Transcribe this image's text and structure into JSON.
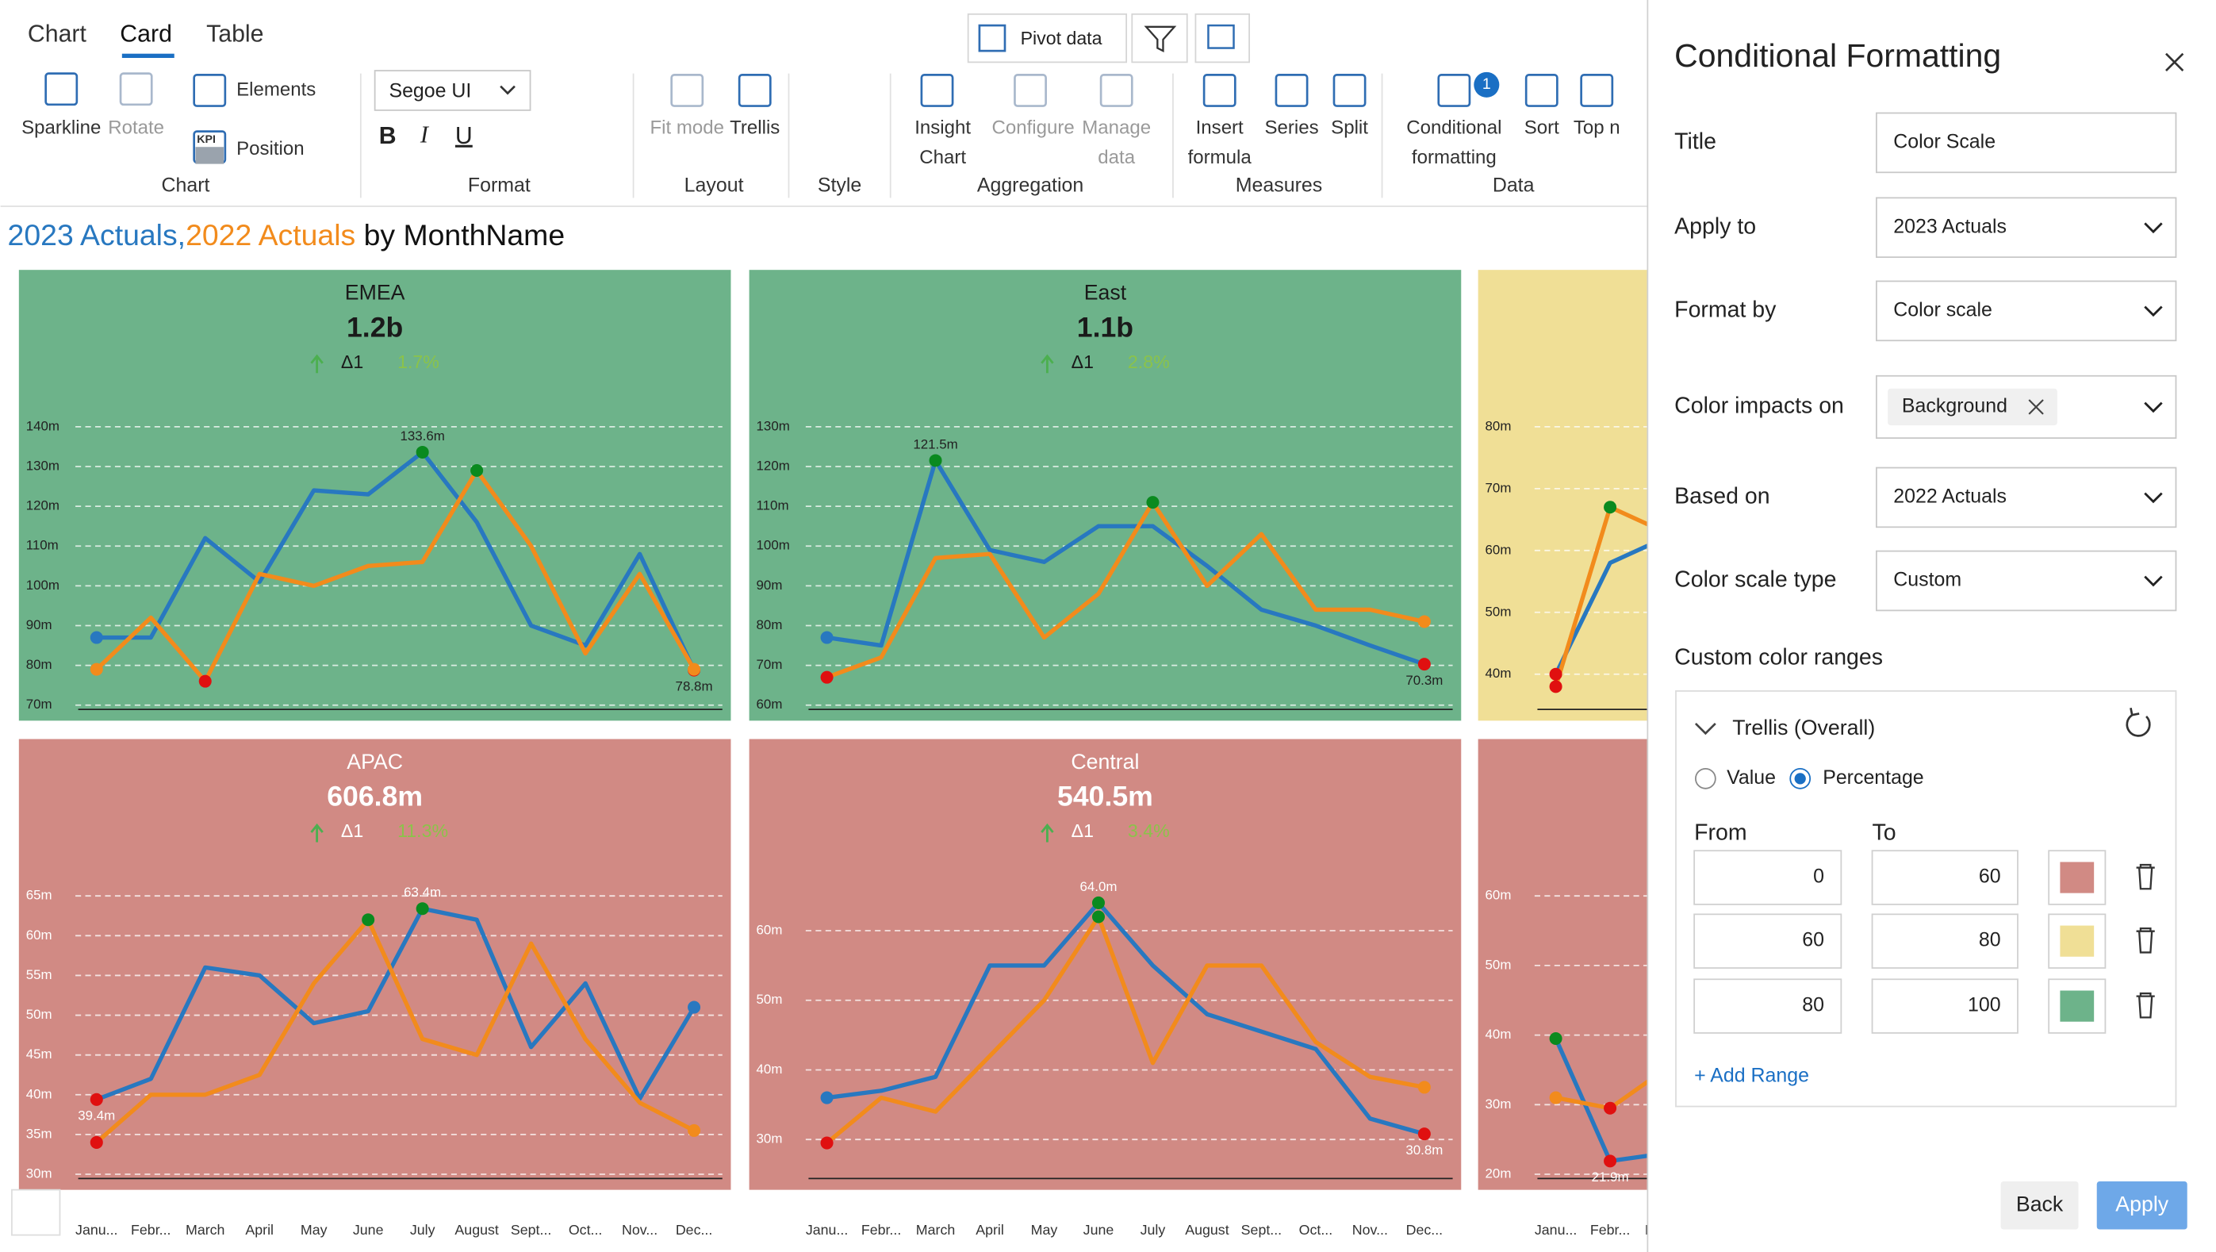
{
  "ribbon": {
    "tabs": [
      "Chart",
      "Card",
      "Table"
    ],
    "pivot": "Pivot data",
    "buttons": [
      [
        "Sparkline"
      ],
      [
        "Rotate"
      ],
      [
        "Elements"
      ],
      [
        "Position"
      ],
      [
        "Fit mode"
      ],
      [
        "Trellis"
      ],
      [
        "Insight",
        "Chart"
      ],
      [
        "Configure"
      ],
      [
        "Manage",
        "data"
      ],
      [
        "Insert",
        "formula"
      ],
      [
        "Series"
      ],
      [
        "Split"
      ],
      [
        "Conditional",
        "formatting"
      ],
      [
        "Sort"
      ],
      [
        "Top n"
      ]
    ],
    "kpi": "KPI",
    "font": "Segoe UI",
    "text_styles": [
      "B",
      "I",
      "U"
    ],
    "badge": "1",
    "groups": [
      "Chart",
      "Format",
      "Layout",
      "Style",
      "Aggregation",
      "Measures",
      "Data"
    ]
  },
  "title": {
    "parts": [
      "2023 Actuals",
      ",",
      "2022 Actuals",
      " by MonthName"
    ],
    "colors": [
      "#2878c0",
      "#2878c0",
      "#f28b1c",
      "#111111"
    ]
  },
  "months": [
    "Janu...",
    "Febr...",
    "March",
    "April",
    "May",
    "June",
    "July",
    "August",
    "Sept...",
    "Oct...",
    "Nov...",
    "Dec..."
  ],
  "cards": [
    {
      "name": "EMEA",
      "value": "1.2b",
      "delta_label": "Δ1",
      "delta": "1.7%",
      "background": "#6db38a",
      "chart": {
        "type": "line",
        "ylim": [
          70,
          140
        ],
        "yticks": [
          {
            "value": 70,
            "label": "70m"
          },
          {
            "value": 80,
            "label": "80m"
          },
          {
            "value": 90,
            "label": "90m"
          },
          {
            "value": 100,
            "label": "100m"
          },
          {
            "value": 110,
            "label": "110m"
          },
          {
            "value": 120,
            "label": "120m"
          },
          {
            "value": 130,
            "label": "130m"
          },
          {
            "value": 140,
            "label": "140m"
          }
        ],
        "series": [
          {
            "color": "#2878c0",
            "values": [
              87,
              87,
              112,
              101,
              124,
              123,
              133.6,
              116,
              90,
              85,
              108,
              78.8
            ],
            "value_labels": [
              null,
              null,
              null,
              null,
              null,
              null,
              "133.6m",
              null,
              null,
              null,
              null,
              "78.8m"
            ]
          },
          {
            "color": "#f28b1c",
            "values": [
              79,
              92,
              76,
              103,
              100,
              105,
              106,
              129,
              110,
              83,
              103,
              79
            ]
          }
        ]
      }
    },
    {
      "name": "East",
      "value": "1.1b",
      "delta_label": "Δ1",
      "delta": "2.8%",
      "background": "#6db38a",
      "chart": {
        "type": "line",
        "ylim": [
          60,
          130
        ],
        "yticks": [
          {
            "value": 60,
            "label": "60m"
          },
          {
            "value": 70,
            "label": "70m"
          },
          {
            "value": 80,
            "label": "80m"
          },
          {
            "value": 90,
            "label": "90m"
          },
          {
            "value": 100,
            "label": "100m"
          },
          {
            "value": 110,
            "label": "110m"
          },
          {
            "value": 120,
            "label": "120m"
          },
          {
            "value": 130,
            "label": "130m"
          }
        ],
        "series": [
          {
            "color": "#2878c0",
            "values": [
              77,
              75,
              121.5,
              99,
              96,
              105,
              105,
              95,
              84,
              80,
              75,
              70.3
            ],
            "value_labels": [
              null,
              null,
              "121.5m",
              null,
              null,
              null,
              null,
              null,
              null,
              null,
              null,
              "70.3m"
            ]
          },
          {
            "color": "#f28b1c",
            "values": [
              67,
              72,
              97,
              98,
              77,
              88,
              111,
              90,
              103,
              84,
              84,
              81
            ]
          }
        ]
      }
    },
    {
      "background": "#f0df96",
      "chart": {
        "type": "line",
        "ylim": [
          35,
          80
        ],
        "yticks": [
          {
            "value": 40,
            "label": "40m"
          },
          {
            "value": 50,
            "label": "50m"
          },
          {
            "value": 60,
            "label": "60m"
          },
          {
            "value": 70,
            "label": "70m"
          },
          {
            "value": 80,
            "label": "80m"
          }
        ],
        "series": [
          {
            "color": "#2878c0",
            "values": [
              40,
              58,
              62
            ]
          },
          {
            "color": "#f28b1c",
            "values": [
              38,
              67,
              63
            ]
          }
        ]
      }
    },
    {
      "name": "APAC",
      "value": "606.8m",
      "delta_label": "Δ1",
      "delta": "11.3%",
      "background": "#d18a84",
      "chart": {
        "type": "line",
        "ylim": [
          30,
          65
        ],
        "yticks": [
          {
            "value": 30,
            "label": "30m"
          },
          {
            "value": 35,
            "label": "35m"
          },
          {
            "value": 40,
            "label": "40m"
          },
          {
            "value": 45,
            "label": "45m"
          },
          {
            "value": 50,
            "label": "50m"
          },
          {
            "value": 55,
            "label": "55m"
          },
          {
            "value": 60,
            "label": "60m"
          },
          {
            "value": 65,
            "label": "65m"
          }
        ],
        "series": [
          {
            "color": "#2878c0",
            "values": [
              39.4,
              42,
              56,
              55,
              49,
              50.5,
              63.4,
              62,
              46,
              54,
              39.5,
              51
            ],
            "value_labels": [
              "39.4m",
              null,
              null,
              null,
              null,
              null,
              "63.4m",
              null,
              null,
              null,
              null,
              null
            ]
          },
          {
            "color": "#f28b1c",
            "values": [
              34,
              40,
              40,
              42.5,
              54,
              62,
              47,
              45,
              59,
              47,
              39,
              35.5
            ]
          }
        ]
      }
    },
    {
      "name": "Central",
      "value": "540.5m",
      "delta_label": "Δ1",
      "delta": "3.4%",
      "background": "#d18a84",
      "chart": {
        "type": "line",
        "ylim": [
          25,
          65
        ],
        "yticks": [
          {
            "value": 30,
            "label": "30m"
          },
          {
            "value": 40,
            "label": "40m"
          },
          {
            "value": 50,
            "label": "50m"
          },
          {
            "value": 60,
            "label": "60m"
          }
        ],
        "series": [
          {
            "color": "#2878c0",
            "values": [
              36,
              37,
              39,
              55,
              55,
              64,
              55,
              48,
              45.5,
              43,
              33,
              30.8
            ],
            "value_labels": [
              null,
              null,
              null,
              null,
              null,
              "64.0m",
              null,
              null,
              null,
              null,
              null,
              "30.8m"
            ]
          },
          {
            "color": "#f28b1c",
            "values": [
              29.5,
              36,
              34,
              42,
              50,
              62,
              41,
              55,
              55,
              44,
              39,
              37.5
            ]
          }
        ]
      }
    },
    {
      "background": "#d18a84",
      "chart": {
        "type": "line",
        "ylim": [
          20,
          60
        ],
        "yticks": [
          {
            "value": 20,
            "label": "20m"
          },
          {
            "value": 30,
            "label": "30m"
          },
          {
            "value": 40,
            "label": "40m"
          },
          {
            "value": 50,
            "label": "50m"
          },
          {
            "value": 60,
            "label": "60m"
          }
        ],
        "series": [
          {
            "color": "#2878c0",
            "values": [
              39.5,
              21.9,
              23
            ],
            "value_labels": [
              null,
              "21.9m",
              null
            ]
          },
          {
            "color": "#f28b1c",
            "values": [
              31,
              29.5,
              35
            ]
          }
        ]
      }
    }
  ],
  "panel": {
    "title": "Conditional Formatting",
    "fields": [
      {
        "label": "Title",
        "value": "Color Scale"
      },
      {
        "label": "Apply to",
        "value": "2023 Actuals"
      },
      {
        "label": "Format by",
        "value": "Color scale"
      },
      {
        "label": "Color impacts on",
        "value": "Background"
      },
      {
        "label": "Based on",
        "value": "2022 Actuals"
      },
      {
        "label": "Color scale type",
        "value": "Custom"
      }
    ],
    "section": "Custom color ranges",
    "group": "Trellis (Overall)",
    "options": [
      "Value",
      "Percentage"
    ],
    "columns": [
      "From",
      "To"
    ],
    "ranges": [
      {
        "from": "0",
        "to": "60",
        "color": "#d18a84"
      },
      {
        "from": "60",
        "to": "80",
        "color": "#f0df96"
      },
      {
        "from": "80",
        "to": "100",
        "color": "#6db38a"
      }
    ],
    "add": "+ Add Range",
    "buttons": [
      "Back",
      "Apply"
    ]
  }
}
